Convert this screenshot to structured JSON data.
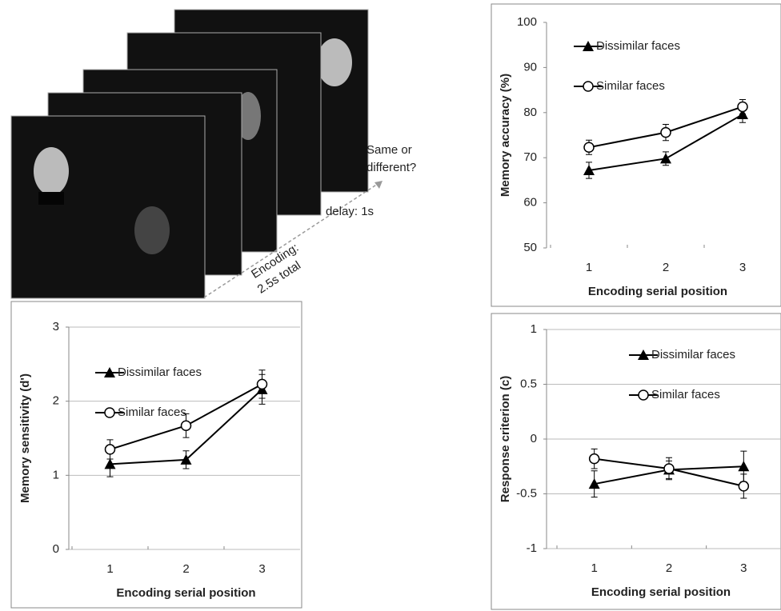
{
  "diagram": {
    "question": [
      "Same or",
      "different?"
    ],
    "delay": "delay: 1s",
    "encoding": [
      "Encoding:",
      "2.5s total"
    ]
  },
  "chart_data": [
    {
      "type": "line",
      "y_label": "Memory accuracy (%)",
      "x_label": "Encoding serial position",
      "categories": [
        "1",
        "2",
        "3"
      ],
      "ylim": [
        50,
        100
      ],
      "yticks": [
        50,
        60,
        70,
        80,
        90,
        100
      ],
      "grid": false,
      "legend": "upper left",
      "series": [
        {
          "name": "Dissimilar faces",
          "color": "#000000",
          "marker": "triangle",
          "values": [
            67.2,
            69.8,
            79.6
          ],
          "errors": [
            1.8,
            1.5,
            1.8
          ]
        },
        {
          "name": "Similar faces",
          "color": "#000000",
          "marker": "circle",
          "values": [
            72.3,
            75.6,
            81.3
          ],
          "errors": [
            1.6,
            1.8,
            1.6
          ]
        }
      ]
    },
    {
      "type": "line",
      "y_label": "Memory sensitivity (d')",
      "x_label": "Encoding serial position",
      "categories": [
        "1",
        "2",
        "3"
      ],
      "ylim": [
        0,
        3
      ],
      "yticks": [
        0,
        1,
        2,
        3
      ],
      "grid": true,
      "legend": "upper left",
      "series": [
        {
          "name": "Dissimilar faces",
          "color": "#000000",
          "marker": "triangle",
          "values": [
            1.15,
            1.21,
            2.16
          ],
          "errors": [
            0.17,
            0.12,
            0.2
          ]
        },
        {
          "name": "Similar faces",
          "color": "#000000",
          "marker": "circle",
          "values": [
            1.35,
            1.67,
            2.23
          ],
          "errors": [
            0.13,
            0.16,
            0.19
          ]
        }
      ]
    },
    {
      "type": "line",
      "y_label": "Response criterion (c)",
      "x_label": "Encoding serial position",
      "categories": [
        "1",
        "2",
        "3"
      ],
      "ylim": [
        -1,
        1
      ],
      "yticks": [
        -1,
        -0.5,
        0,
        0.5,
        1
      ],
      "grid": true,
      "legend": "upper right",
      "series": [
        {
          "name": "Dissimilar faces",
          "color": "#000000",
          "marker": "triangle",
          "values": [
            -0.41,
            -0.28,
            -0.25
          ],
          "errors": [
            0.12,
            0.08,
            0.14
          ]
        },
        {
          "name": "Similar faces",
          "color": "#000000",
          "marker": "circle",
          "values": [
            -0.18,
            -0.27,
            -0.43
          ],
          "errors": [
            0.09,
            0.1,
            0.11
          ]
        }
      ]
    }
  ]
}
